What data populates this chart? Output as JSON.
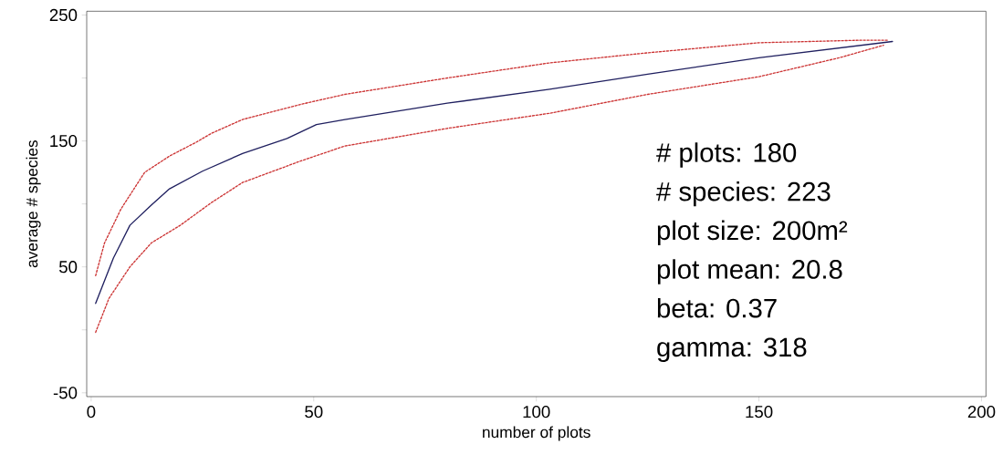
{
  "chart_data": {
    "type": "line",
    "xlabel": "number of plots",
    "ylabel": "average # species",
    "xlim": [
      -1,
      201
    ],
    "ylim": [
      -53,
      253
    ],
    "xticks": [
      0,
      50,
      100,
      150,
      200
    ],
    "yticks": [
      -50,
      {
        "value": 0,
        "label": null
      },
      50,
      {
        "value": 100,
        "label": null
      },
      150,
      {
        "value": 200,
        "label": null
      },
      250
    ],
    "grid": false,
    "marker": "none",
    "annotations": [
      "# plots: 180",
      "# species: 223",
      "plot size: 200m²",
      "plot mean: 20.8",
      "beta: 0.37",
      "gamma: 318"
    ],
    "series": [
      {
        "color": "#cc3333",
        "line_style": "dotted",
        "x": [
          1,
          3,
          6.7,
          12,
          17.6,
          23.6,
          27,
          34,
          47,
          57,
          80,
          103,
          125,
          150,
          173,
          179
        ],
        "values": [
          43,
          69,
          96,
          125,
          138,
          149,
          156,
          167,
          179,
          187,
          200,
          212,
          220,
          228,
          230,
          230
        ]
      },
      {
        "color": "#1f1f5f",
        "line_style": "solid",
        "x": [
          1,
          3,
          5,
          8.7,
          13.5,
          17.6,
          25,
          34,
          44,
          50.6,
          57,
          80,
          103,
          125,
          150,
          180
        ],
        "values": [
          21,
          39,
          57,
          83,
          99,
          112,
          126,
          140,
          152,
          163,
          167,
          180,
          191,
          203,
          216,
          229
        ]
      },
      {
        "color": "#cc3333",
        "line_style": "dotted",
        "x": [
          1,
          4,
          8.7,
          13.5,
          20,
          27,
          34,
          47,
          57,
          80,
          103,
          125,
          150,
          168,
          178
        ],
        "values": [
          -2,
          25,
          50,
          69,
          83,
          101,
          117,
          134,
          146,
          160,
          172,
          187,
          201,
          216,
          226
        ]
      }
    ]
  }
}
